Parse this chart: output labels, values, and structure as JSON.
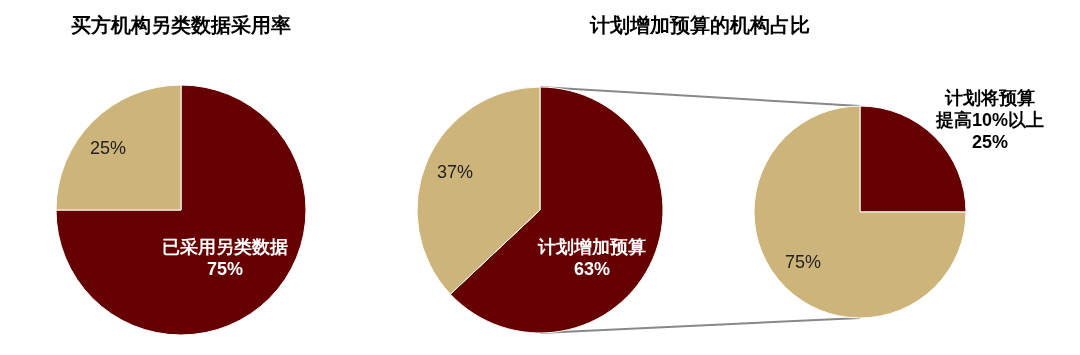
{
  "chart_data": [
    {
      "type": "pie",
      "title": "买方机构另类数据采用率",
      "categories": [
        "已采用另类数据",
        null
      ],
      "values": [
        75,
        25
      ],
      "colors": [
        "#660000",
        "#cdb47a"
      ],
      "value_labels": [
        "75%",
        "25%"
      ]
    },
    {
      "type": "pie",
      "title": "计划增加预算的机构占比",
      "categories": [
        "计划增加预算",
        null
      ],
      "values": [
        63,
        37
      ],
      "colors": [
        "#660000",
        "#cdb47a"
      ],
      "value_labels": [
        "63%",
        "37%"
      ]
    },
    {
      "type": "pie",
      "categories": [
        "计划将预算提高10%以上",
        null
      ],
      "values": [
        25,
        75
      ],
      "colors": [
        "#660000",
        "#cdb47a"
      ],
      "value_labels": [
        "25%",
        "75%"
      ]
    }
  ]
}
